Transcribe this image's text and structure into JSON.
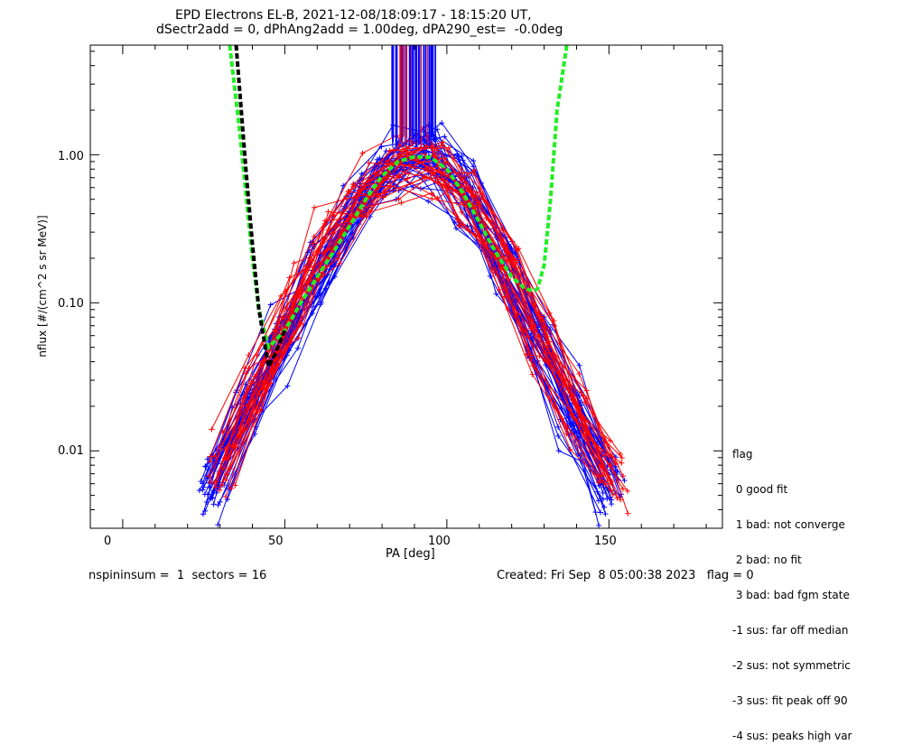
{
  "header": {
    "title_line1": "EPD Electrons EL-B, 2021-12-08/18:09:17 - 18:15:20 UT,",
    "title_line2": "dSectr2add = 0, dPhAng2add = 1.00deg, dPA290_est=  -0.0deg"
  },
  "footer": {
    "left": "nspininsum =  1  sectors = 16",
    "right": "Created: Fri Sep  8 05:00:38 2023   flag = 0"
  },
  "legend": {
    "title": "flag",
    "items": [
      " 0 good fit",
      " 1 bad: not converge",
      " 2 bad: no fit",
      " 3 bad: bad fgm state",
      "-1 sus: far off median",
      "-2 sus: not symmetric",
      "-3 sus: fit peak off 90",
      "-4 sus: peaks high var"
    ]
  },
  "colors": {
    "series_a": "#0000ff",
    "series_b": "#ff0000",
    "fit_green": "#22ee22",
    "fit_black": "#000000"
  },
  "chart_data": {
    "type": "line",
    "xlabel": "PA [deg]",
    "ylabel": "nflux [#/(cm^2 s sr MeV)]",
    "xlim": [
      -10,
      185
    ],
    "ylim": [
      0.003,
      5.5
    ],
    "yscale": "log",
    "xticks": [
      0,
      50,
      100,
      150
    ],
    "xtick_labels": [
      "0",
      "50",
      "100",
      "150"
    ],
    "yticks": [
      0.01,
      0.1,
      1.0
    ],
    "ytick_labels": [
      "0.01",
      "0.10",
      "1.00"
    ],
    "grid": false,
    "series": [
      {
        "color": "blue",
        "spectra_shown": 40,
        "pa": [
          28,
          39,
          50,
          61,
          72,
          83,
          95,
          106,
          117,
          128,
          139,
          150
        ],
        "median_nflux": [
          0.006,
          0.02,
          0.055,
          0.16,
          0.42,
          0.85,
          0.9,
          0.55,
          0.2,
          0.06,
          0.018,
          0.006
        ]
      },
      {
        "color": "red",
        "spectra_shown": 26,
        "pa": [
          30,
          41,
          52,
          63,
          74,
          85,
          96,
          107,
          118,
          129,
          140,
          151
        ],
        "median_nflux": [
          0.008,
          0.03,
          0.09,
          0.25,
          0.55,
          0.85,
          0.85,
          0.5,
          0.19,
          0.06,
          0.019,
          0.007
        ]
      },
      {
        "color": "green-dashed",
        "pa": [
          33,
          36,
          38,
          40,
          42,
          45,
          50,
          55,
          60,
          65,
          70,
          75,
          80,
          85,
          90,
          95,
          100,
          105,
          110,
          115,
          120,
          124,
          127,
          128,
          130,
          132,
          134,
          137
        ],
        "nflux": [
          5.5,
          1.5,
          0.55,
          0.2,
          0.09,
          0.05,
          0.065,
          0.1,
          0.15,
          0.22,
          0.33,
          0.5,
          0.72,
          0.9,
          0.97,
          0.96,
          0.8,
          0.55,
          0.35,
          0.22,
          0.15,
          0.125,
          0.12,
          0.125,
          0.18,
          0.5,
          2.0,
          5.5
        ]
      },
      {
        "color": "black-dashed",
        "pa": [
          35,
          38,
          40,
          42,
          44,
          45,
          47,
          50
        ],
        "nflux": [
          5.5,
          0.8,
          0.25,
          0.09,
          0.05,
          0.037,
          0.045,
          0.065
        ]
      }
    ]
  }
}
